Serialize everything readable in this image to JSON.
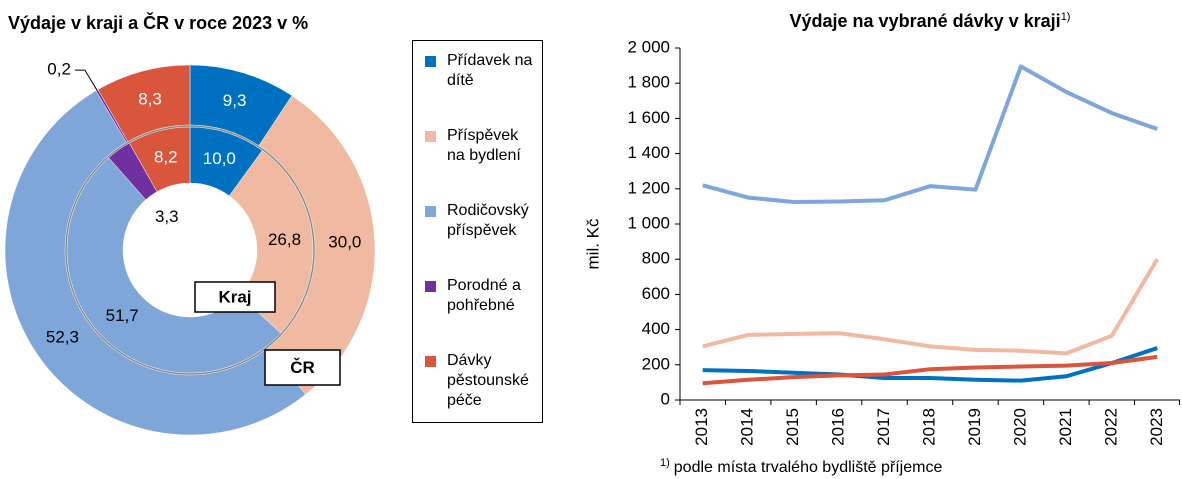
{
  "chart_data": [
    {
      "type": "donut",
      "title": "Výdaje v kraji a ČR v roce 2023 v %",
      "categories": [
        "Přídavek na dítě",
        "Příspěvek na bydlení",
        "Rodičovský příspěvek",
        "Porodné a pohřebné",
        "Dávky pěstounské péče"
      ],
      "colors": [
        "#0070c0",
        "#f0b9a2",
        "#7ea6d9",
        "#7030a0",
        "#d9553c"
      ],
      "series": [
        {
          "name": "Kraj",
          "values": [
            10.0,
            26.8,
            51.7,
            3.3,
            8.2
          ],
          "value_labels": [
            "10,0",
            "26,8",
            "51,7",
            "3,3",
            "8,2"
          ]
        },
        {
          "name": "ČR",
          "values": [
            9.3,
            30.0,
            52.3,
            0.2,
            8.3
          ],
          "value_labels": [
            "9,3",
            "30,0",
            "52,3",
            "0,2",
            "8,3"
          ]
        }
      ]
    },
    {
      "type": "line",
      "title": "Výdaje na vybrané dávky v kraji",
      "title_note": "1)",
      "footnote": "podle místa trvalého bydliště příjemce",
      "ylabel": "mil. Kč",
      "categories": [
        "2013",
        "2014",
        "2015",
        "2016",
        "2017",
        "2018",
        "2019",
        "2020",
        "2021",
        "2022",
        "2023"
      ],
      "ylim": [
        0,
        2000
      ],
      "yticks": [
        0,
        200,
        400,
        600,
        800,
        {
          "value": 1000,
          "label": "1 000"
        },
        {
          "value": 1200,
          "label": "1 200"
        },
        {
          "value": 1400,
          "label": "1 400"
        },
        {
          "value": 1600,
          "label": "1 600"
        },
        {
          "value": 1800,
          "label": "1 800"
        },
        {
          "value": 2000,
          "label": "2 000"
        }
      ],
      "grid": false,
      "series": [
        {
          "color": "#7ea6d9",
          "values": [
            1220,
            1150,
            1125,
            1128,
            1135,
            1215,
            1195,
            1895,
            1750,
            1630,
            1540
          ]
        },
        {
          "color": "#f0b9a2",
          "values": [
            305,
            370,
            375,
            380,
            345,
            305,
            285,
            280,
            265,
            365,
            800
          ]
        },
        {
          "color": "#0070c0",
          "values": [
            170,
            165,
            155,
            145,
            125,
            125,
            115,
            110,
            135,
            210,
            295
          ]
        },
        {
          "color": "#d9553c",
          "values": [
            95,
            115,
            130,
            140,
            145,
            175,
            185,
            190,
            195,
            210,
            245
          ]
        }
      ]
    }
  ]
}
